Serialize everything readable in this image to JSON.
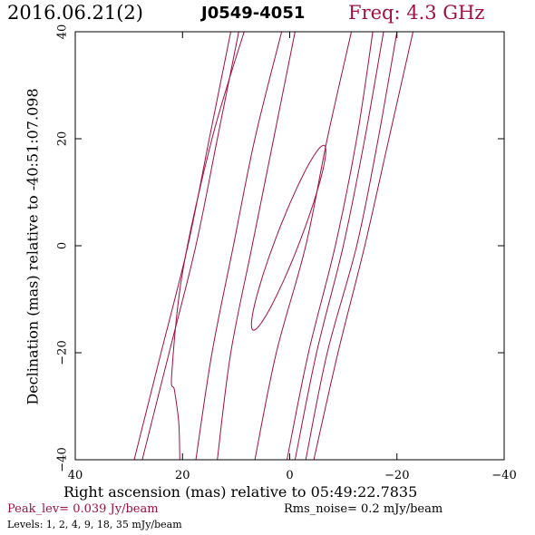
{
  "header": {
    "date": "2016.06.21(2)",
    "source": "J0549-4051",
    "freq": "Freq: 4.3 GHz"
  },
  "footer": {
    "peak": "Peak_lev=  0.039 Jy/beam",
    "rms": "Rms_noise=  0.2 mJy/beam",
    "levels": "Levels:   1,   2,   4,   9,   18,   35 mJy/beam"
  },
  "colors": {
    "contour": "#a01040",
    "axis": "#000000",
    "background": "#ffffff"
  },
  "chart_data": {
    "type": "contour",
    "title": "J0549-4051",
    "xlabel": "Right ascension (mas) relative to 05:49:22.7835",
    "ylabel": "Declination (mas) relative to -40:51:07.098",
    "xlim": [
      40,
      -40
    ],
    "ylim": [
      -40,
      40
    ],
    "xticks": [
      40,
      20,
      0,
      -20,
      -40
    ],
    "yticks": [
      -40,
      -20,
      0,
      20,
      40
    ],
    "xtick_labels": [
      "40",
      "20",
      "0",
      "−20",
      "−40"
    ],
    "ytick_labels": [
      "−40",
      "−20",
      "0",
      "20",
      "40"
    ],
    "grid": false,
    "levels_mJy": [
      1,
      2,
      4,
      9,
      18,
      35
    ],
    "contours": [
      {
        "name": "",
        "points": [
          [
            29,
            -40
          ],
          [
            24,
            -20
          ],
          [
            19,
            0
          ],
          [
            15,
            20
          ],
          [
            11,
            40
          ]
        ]
      },
      {
        "name": "",
        "points": [
          [
            27.5,
            -40
          ],
          [
            22.5,
            -20
          ],
          [
            17.5,
            0
          ],
          [
            13.5,
            20
          ],
          [
            9.5,
            40
          ]
        ]
      },
      {
        "name": "",
        "points": [
          [
            20.5,
            -40
          ],
          [
            20.7,
            -33
          ],
          [
            21.5,
            -27
          ],
          [
            22.0,
            -24
          ],
          [
            20.0,
            -5
          ],
          [
            14.5,
            20
          ],
          [
            8.5,
            40
          ]
        ]
      },
      {
        "name": "",
        "points": [
          [
            17.5,
            -40
          ],
          [
            14.5,
            -20
          ],
          [
            10.5,
            0
          ],
          [
            6.5,
            20
          ],
          [
            1.5,
            40
          ]
        ]
      },
      {
        "name": "",
        "points": [
          [
            13.5,
            -40
          ],
          [
            11.0,
            -20
          ],
          [
            7.0,
            0
          ],
          [
            3.0,
            20
          ],
          [
            -1.0,
            40
          ]
        ]
      },
      {
        "name": "",
        "points": [
          [
            6.5,
            -40
          ],
          [
            2.5,
            -20
          ],
          [
            -3.0,
            0
          ],
          [
            -7.0,
            20
          ],
          [
            -11.5,
            40
          ]
        ]
      },
      {
        "name": "",
        "points": [
          [
            0.5,
            -40
          ],
          [
            -3.5,
            -20
          ],
          [
            -8.5,
            0
          ],
          [
            -12.5,
            20
          ],
          [
            -15.5,
            40
          ]
        ]
      },
      {
        "name": "",
        "points": [
          [
            -1.0,
            -40
          ],
          [
            -5.0,
            -20
          ],
          [
            -10.0,
            0
          ],
          [
            -14.0,
            20
          ],
          [
            -17.5,
            40
          ]
        ]
      },
      {
        "name": "",
        "points": [
          [
            -3.0,
            -40
          ],
          [
            -7.0,
            -20
          ],
          [
            -12.5,
            0
          ],
          [
            -16.5,
            20
          ],
          [
            -20.0,
            40
          ]
        ]
      },
      {
        "name": "",
        "points": [
          [
            -4.5,
            -40
          ],
          [
            -9.0,
            -20
          ],
          [
            -14.0,
            0
          ],
          [
            -18.5,
            20
          ],
          [
            -23.0,
            40
          ]
        ]
      }
    ],
    "peak_ellipse": {
      "center": [
        0.2,
        1.5
      ],
      "semi_major": 18.5,
      "semi_minor": 2.2,
      "angle_deg": 69
    }
  }
}
